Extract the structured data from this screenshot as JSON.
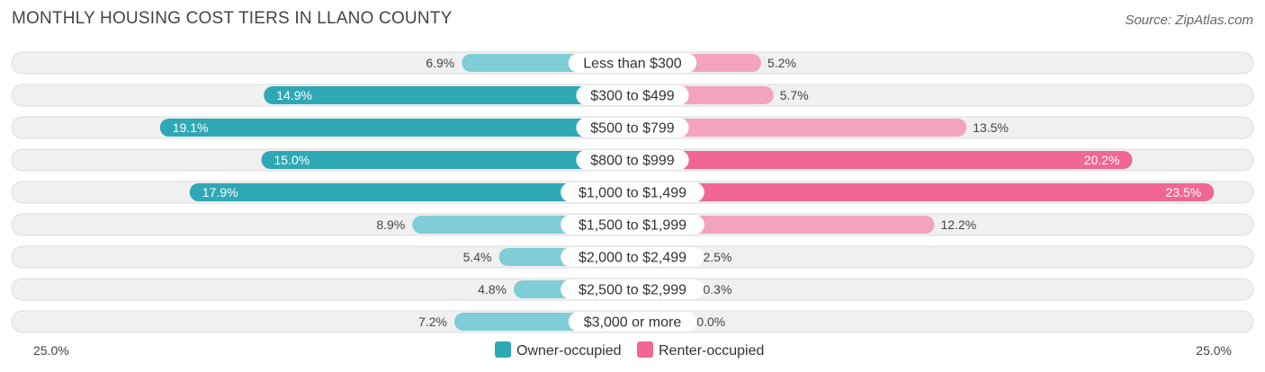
{
  "chart_data": {
    "type": "bar",
    "orientation": "horizontal-diverging",
    "title": "MONTHLY HOUSING COST TIERS IN LLANO COUNTY",
    "source": "Source: ZipAtlas.com",
    "categories": [
      "Less than $300",
      "$300 to $499",
      "$500 to $799",
      "$800 to $999",
      "$1,000 to $1,499",
      "$1,500 to $1,999",
      "$2,000 to $2,499",
      "$2,500 to $2,999",
      "$3,000 or more"
    ],
    "series": [
      {
        "name": "Owner-occupied",
        "values": [
          6.9,
          14.9,
          19.1,
          15.0,
          17.9,
          8.9,
          5.4,
          4.8,
          7.2
        ],
        "labels": [
          "6.9%",
          "14.9%",
          "19.1%",
          "15.0%",
          "17.9%",
          "8.9%",
          "5.4%",
          "4.8%",
          "7.2%"
        ]
      },
      {
        "name": "Renter-occupied",
        "values": [
          5.2,
          5.7,
          13.5,
          20.2,
          23.5,
          12.2,
          2.5,
          0.3,
          0.0
        ],
        "labels": [
          "5.2%",
          "5.7%",
          "13.5%",
          "20.2%",
          "23.5%",
          "12.2%",
          "2.5%",
          "0.3%",
          "0.0%"
        ]
      }
    ],
    "axis_min_label": "25.0%",
    "axis_max_label": "25.0%",
    "xlim": [
      -25,
      25
    ],
    "legend_position": "bottom-center",
    "colors": {
      "owner": "#2fa8b6",
      "owner_light": "#7fcdd6",
      "renter": "#f06794",
      "renter_light": "#f4a3bf",
      "row_bg": "#f0f0f0",
      "row_border": "#dddddd"
    }
  }
}
